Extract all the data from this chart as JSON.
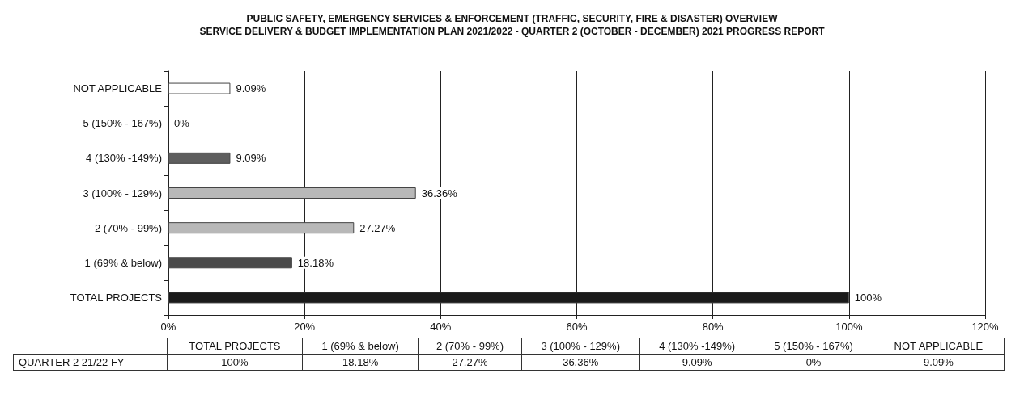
{
  "chart_data": {
    "type": "bar",
    "orientation": "horizontal",
    "title": "PUBLIC SAFETY, EMERGENCY SERVICES & ENFORCEMENT (TRAFFIC, SECURITY, FIRE & DISASTER) OVERVIEW",
    "subtitle": "SERVICE DELIVERY & BUDGET IMPLEMENTATION PLAN 2021/2022 - QUARTER 2 (OCTOBER - DECEMBER) 2021 PROGRESS REPORT",
    "categories": [
      "NOT APPLICABLE",
      "5 (150% - 167%)",
      "4 (130% -149%)",
      "3 (100% - 129%)",
      "2 (70% - 99%)",
      "1 (69% & below)",
      "TOTAL PROJECTS"
    ],
    "series": [
      {
        "name": "QUARTER 2 21/22 FY",
        "values": [
          9.09,
          0,
          9.09,
          36.36,
          27.27,
          18.18,
          100
        ],
        "colors": [
          "#ffffff",
          "#ffffff",
          "#5e5e5e",
          "#b8b8b8",
          "#b8b8b8",
          "#4a4a4a",
          "#1a1a1a"
        ],
        "value_labels": [
          "9.09%",
          "0%",
          "9.09%",
          "36.36%",
          "27.27%",
          "18.18%",
          "100%"
        ]
      }
    ],
    "xlim": [
      0,
      120
    ],
    "xticks": [
      {
        "value": 0,
        "label": "0%"
      },
      {
        "value": 20,
        "label": "20%"
      },
      {
        "value": 40,
        "label": "40%"
      },
      {
        "value": 60,
        "label": "60%"
      },
      {
        "value": 80,
        "label": "80%"
      },
      {
        "value": 100,
        "label": "100%"
      },
      {
        "value": 120,
        "label": "120%"
      }
    ],
    "grid": "x"
  }
}
